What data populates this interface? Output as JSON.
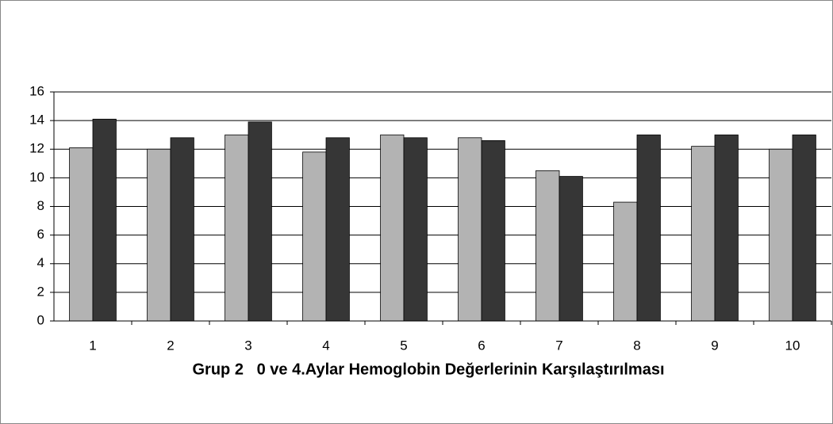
{
  "chart_data": {
    "type": "bar",
    "title": "Grup 2   0 ve 4.Aylar Hemoglobin Değerlerinin Karşılaştırılması",
    "categories": [
      "1",
      "2",
      "3",
      "4",
      "5",
      "6",
      "7",
      "8",
      "9",
      "10"
    ],
    "series": [
      {
        "color": "#b3b3b3",
        "values": [
          12.1,
          12.0,
          13.0,
          11.8,
          13.0,
          12.8,
          10.5,
          8.3,
          12.2,
          12.0
        ]
      },
      {
        "color": "#363636",
        "values": [
          14.1,
          12.8,
          13.9,
          12.8,
          12.8,
          12.6,
          10.1,
          13.0,
          13.0,
          13.0
        ]
      }
    ],
    "ylim": [
      0,
      16
    ],
    "yticks": [
      0,
      2,
      4,
      6,
      8,
      10,
      12,
      14,
      16
    ],
    "grid": true
  }
}
